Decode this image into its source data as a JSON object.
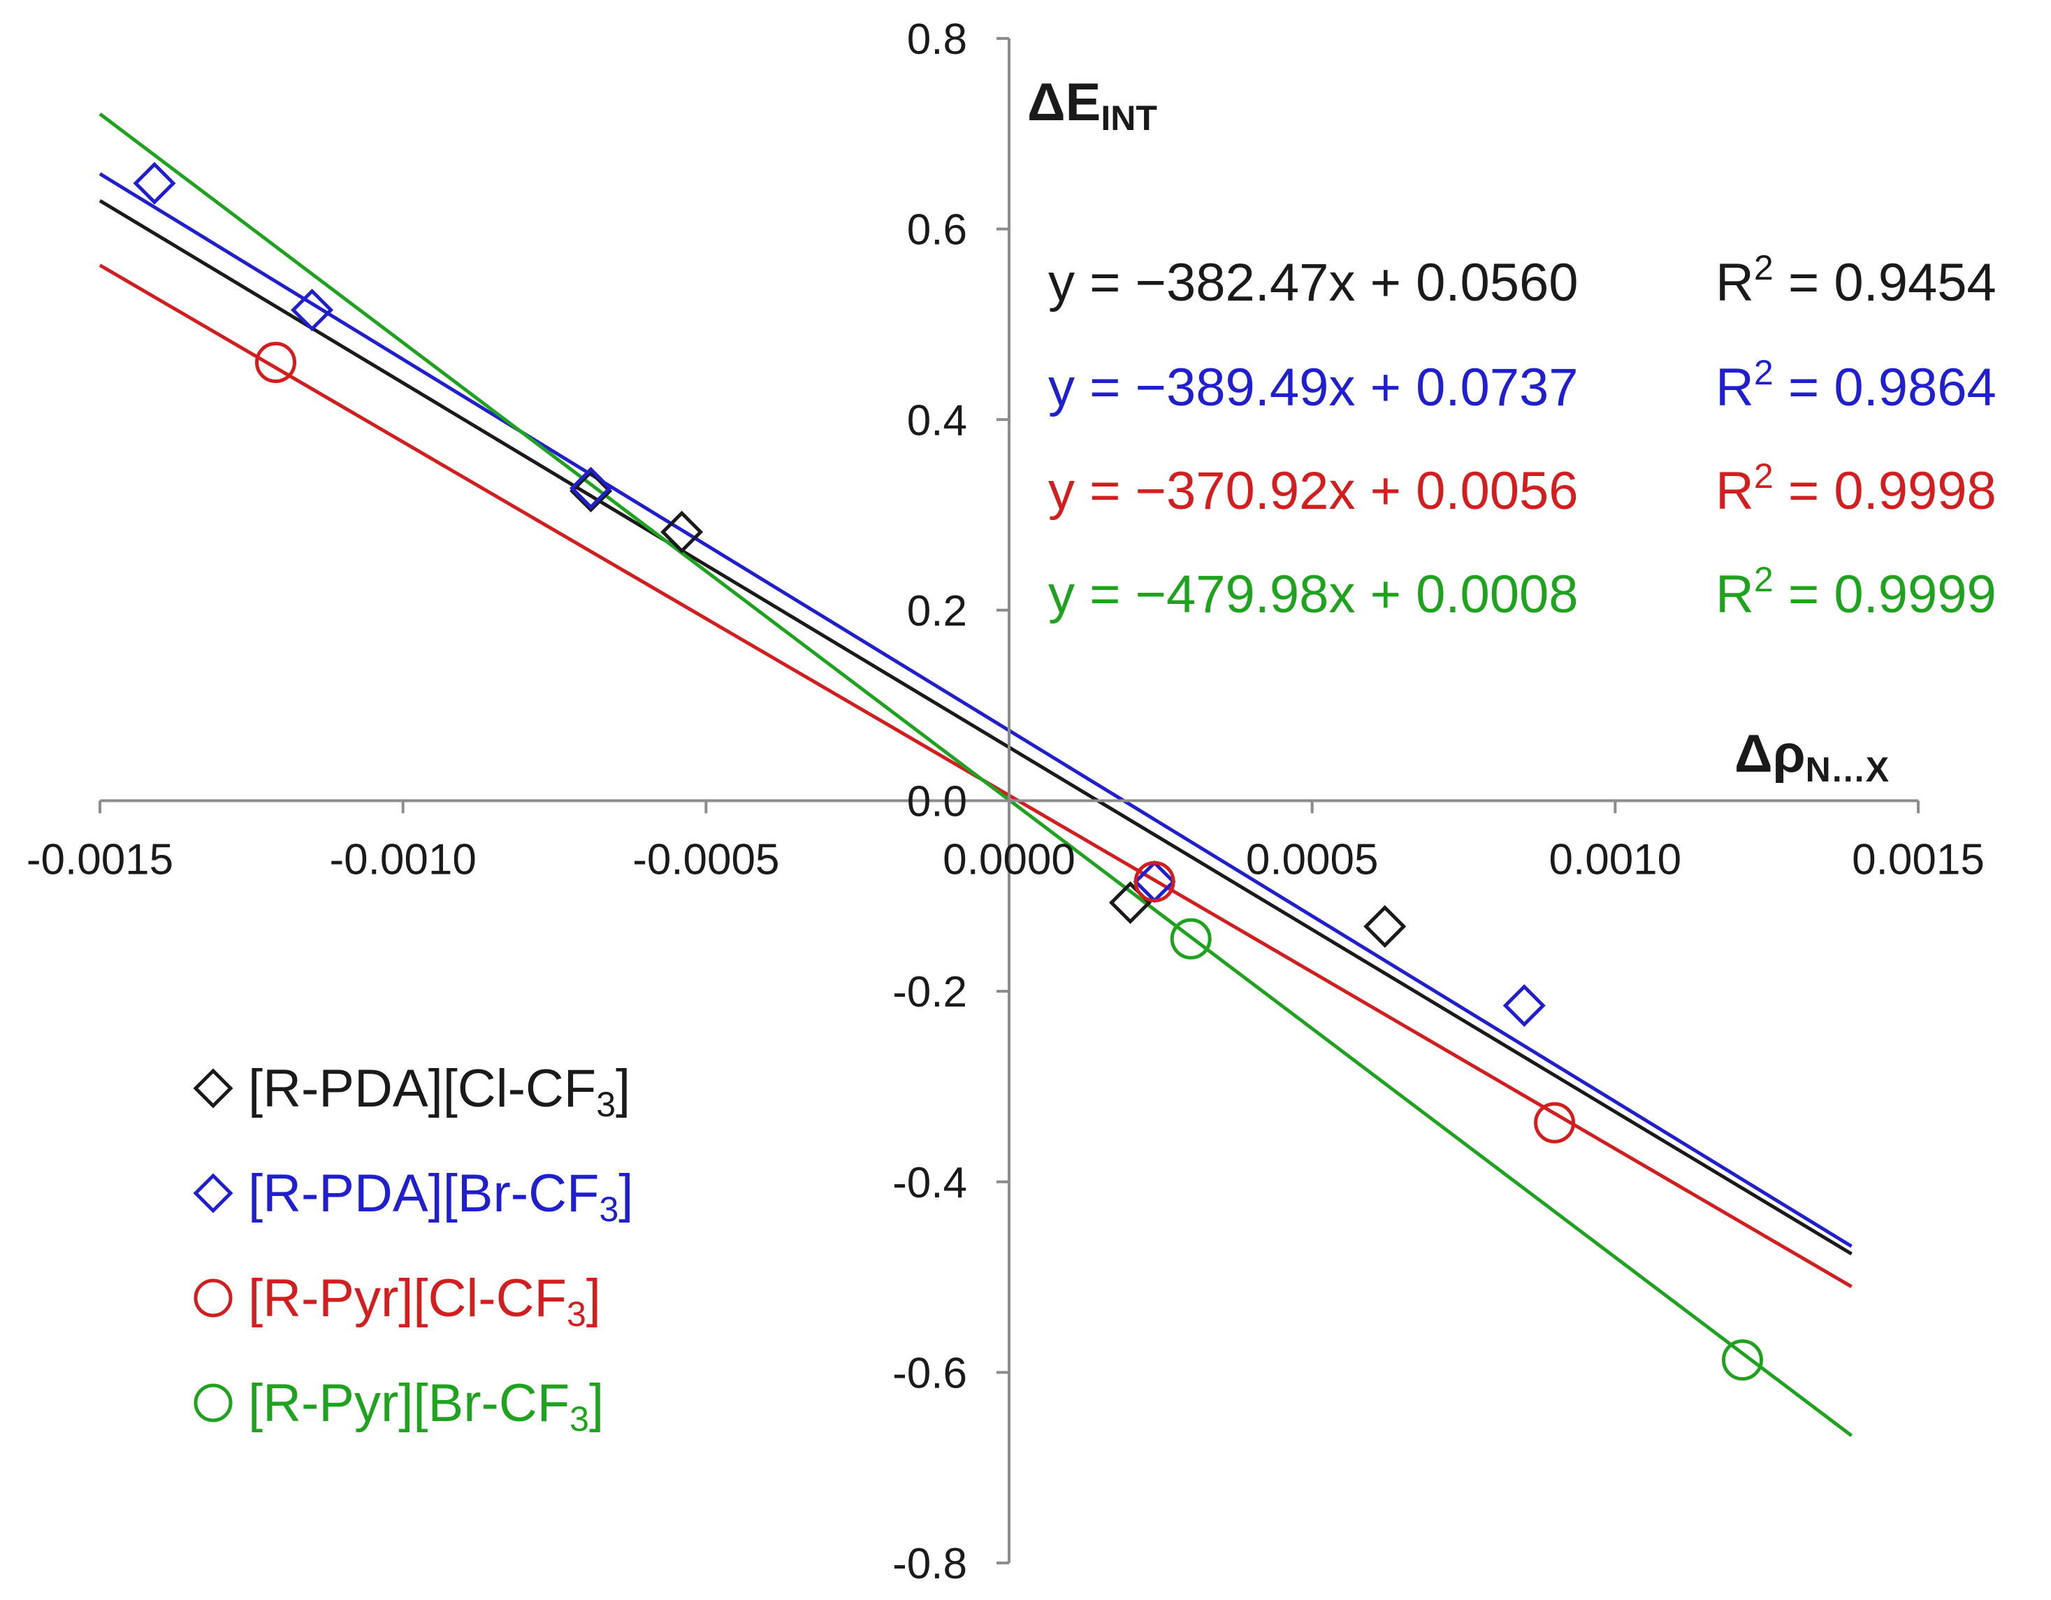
{
  "chart_data": {
    "type": "scatter",
    "xlabel": "Δρ",
    "xlabel_sub": "N…X",
    "ylabel": "ΔE",
    "ylabel_sub": "INT",
    "xlim": [
      -0.0015,
      0.0015
    ],
    "ylim": [
      -0.8,
      0.8
    ],
    "x_ticks": [
      -0.0015,
      -0.001,
      -0.0005,
      0.0,
      0.0005,
      0.001,
      0.0015
    ],
    "x_tick_labels": [
      "-0.0015",
      "-0.0010",
      "-0.0005",
      "0.0000",
      "0.0005",
      "0.0010",
      "0.0015"
    ],
    "y_ticks": [
      0.8,
      0.6,
      0.4,
      0.2,
      0.0,
      -0.2,
      -0.4,
      -0.6,
      -0.8
    ],
    "y_tick_labels": [
      "0.8",
      "0.6",
      "0.4",
      "0.2",
      "0.0",
      "-0.2",
      "-0.4",
      "-0.6",
      "-0.8"
    ],
    "grid": false,
    "legend_position": "bottom-left",
    "series": [
      {
        "name": "[R-PDA][Cl-CF",
        "name_sub": "3",
        "name_end": "]",
        "color": "#1a1a1a",
        "marker": "diamond",
        "points": [
          [
            -0.00069,
            0.325
          ],
          [
            -0.00054,
            0.282
          ],
          [
            0.0002,
            -0.107
          ],
          [
            0.00062,
            -0.132
          ]
        ],
        "fit": {
          "slope": -382.47,
          "intercept": 0.056,
          "x_range": [
            -0.0015,
            0.00139
          ]
        },
        "equation": "y = −382.47x + 0.0560",
        "r2_label": "R",
        "r2_sup": "2",
        "r2_value": " = 0.9454"
      },
      {
        "name": "[R-PDA][Br-CF",
        "name_sub": "3",
        "name_end": "]",
        "color": "#1f1fcf",
        "marker": "diamond",
        "points": [
          [
            -0.00141,
            0.648
          ],
          [
            -0.00115,
            0.515
          ],
          [
            -0.00069,
            0.328
          ],
          [
            0.00024,
            -0.085
          ],
          [
            0.00085,
            -0.215
          ]
        ],
        "fit": {
          "slope": -389.49,
          "intercept": 0.0737,
          "x_range": [
            -0.0015,
            0.00139
          ]
        },
        "equation": "y = −389.49x + 0.0737",
        "r2_label": "R",
        "r2_sup": "2",
        "r2_value": " = 0.9864"
      },
      {
        "name": "[R-Pyr][Cl-CF",
        "name_sub": "3",
        "name_end": "]",
        "color": "#d21e1e",
        "marker": "circle",
        "points": [
          [
            -0.00121,
            0.46
          ],
          [
            0.00024,
            -0.085
          ],
          [
            0.0009,
            -0.338
          ]
        ],
        "fit": {
          "slope": -370.92,
          "intercept": 0.0056,
          "x_range": [
            -0.0015,
            0.00139
          ]
        },
        "equation": "y = −370.92x + 0.0056",
        "r2_label": "R",
        "r2_sup": "2",
        "r2_value": " = 0.9998"
      },
      {
        "name": "[R-Pyr][Br-CF",
        "name_sub": "3",
        "name_end": "]",
        "color": "#1fa31f",
        "marker": "circle",
        "points": [
          [
            0.0003,
            -0.145
          ],
          [
            0.00121,
            -0.587
          ]
        ],
        "fit": {
          "slope": -479.98,
          "intercept": 0.0008,
          "x_range": [
            -0.0015,
            0.00139
          ]
        },
        "equation": "y = −479.98x + 0.0008",
        "r2_label": "R",
        "r2_sup": "2",
        "r2_value": " = 0.9999"
      }
    ]
  }
}
